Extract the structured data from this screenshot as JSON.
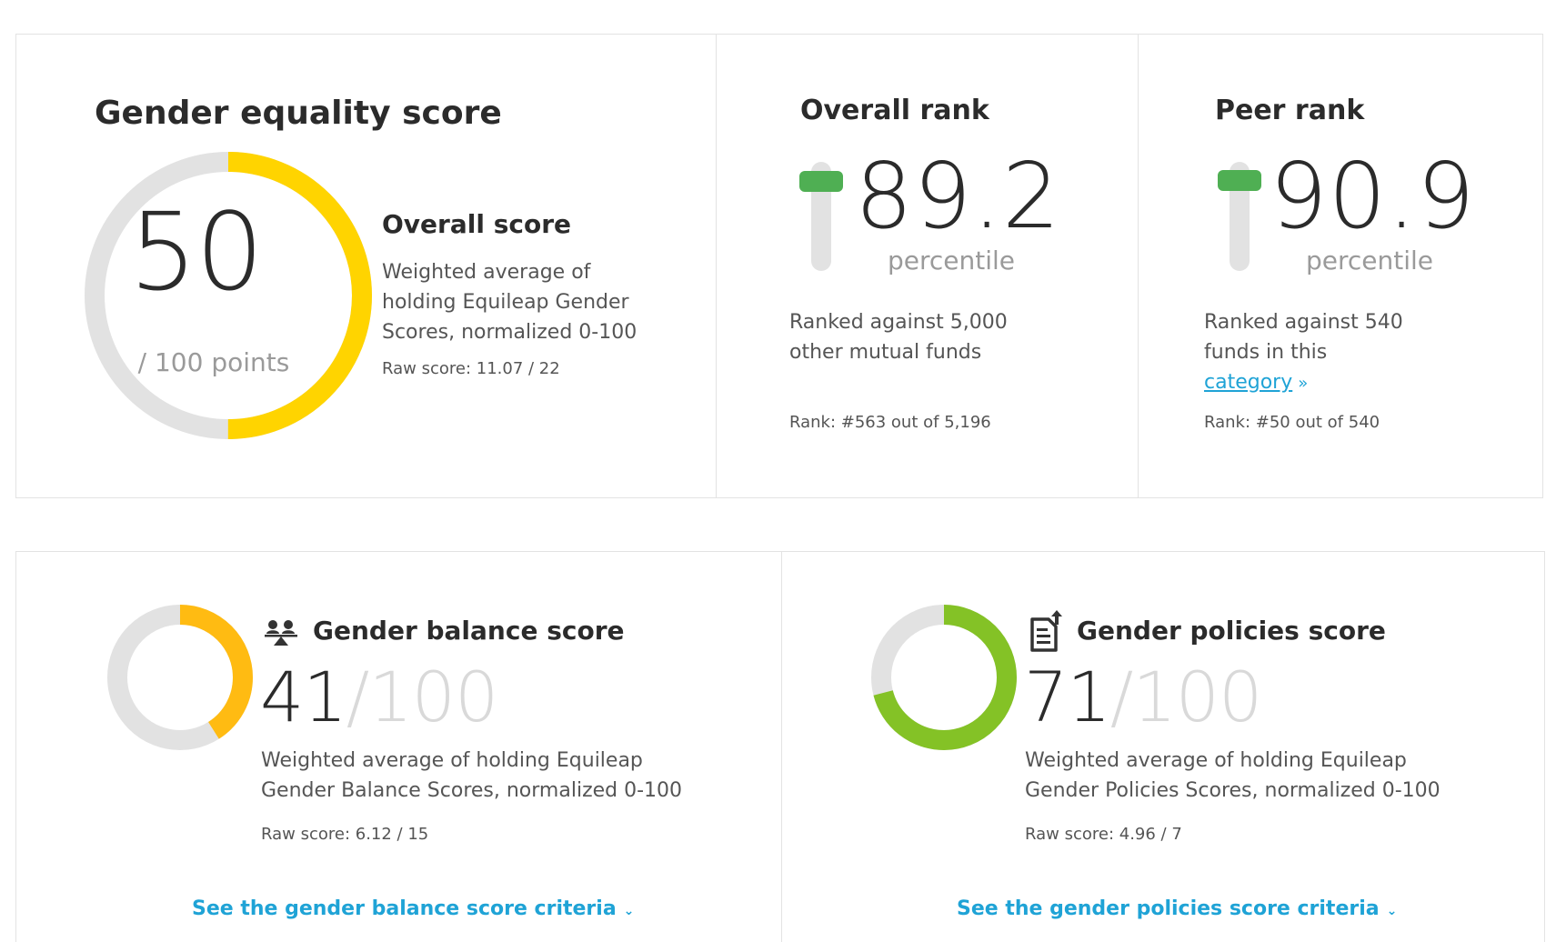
{
  "overall": {
    "title": "Gender equality score",
    "score": "50",
    "score_value": 50,
    "max": 100,
    "points_label": "/ 100 points",
    "label": "Overall score",
    "description": "Weighted average of holding Equileap Gender Scores, normalized 0-100",
    "raw": "Raw score: 11.07 / 22",
    "color": "#ffd400",
    "track_color": "#e2e2e2"
  },
  "overall_rank": {
    "title": "Overall rank",
    "value": "89.2",
    "percentile_value": 89.2,
    "unit": "percentile",
    "description": "Ranked against 5,000 other mutual funds",
    "result": "Rank: #563 out of 5,196",
    "color": "#4faf53"
  },
  "peer_rank": {
    "title": "Peer rank",
    "value": "90.9",
    "percentile_value": 90.9,
    "unit": "percentile",
    "description_prefix": "Ranked against 540 funds in this",
    "link_label": "category",
    "link_icon": "double-chevron-right-icon",
    "result": "Rank: #50 out of 540",
    "color": "#4faf53"
  },
  "balance": {
    "title": "Gender balance score",
    "icon": "people-balance-icon",
    "score": "41",
    "score_value": 41,
    "denom": "/100",
    "description": "Weighted average of holding Equileap Gender Balance Scores, normalized 0-100",
    "raw": "Raw score: 6.12 / 15",
    "criteria_link": "See the gender balance score criteria",
    "color": "#ffbb12"
  },
  "policies": {
    "title": "Gender policies score",
    "icon": "policy-document-icon",
    "score": "71",
    "score_value": 71,
    "denom": "/100",
    "description": "Weighted average of holding Equileap Gender Policies Scores, normalized 0-100",
    "raw": "Raw score: 4.96 / 7",
    "criteria_link": "See the gender policies score criteria",
    "color": "#84c226"
  },
  "colors": {
    "link": "#1fa3d6",
    "track": "#e2e2e2"
  }
}
